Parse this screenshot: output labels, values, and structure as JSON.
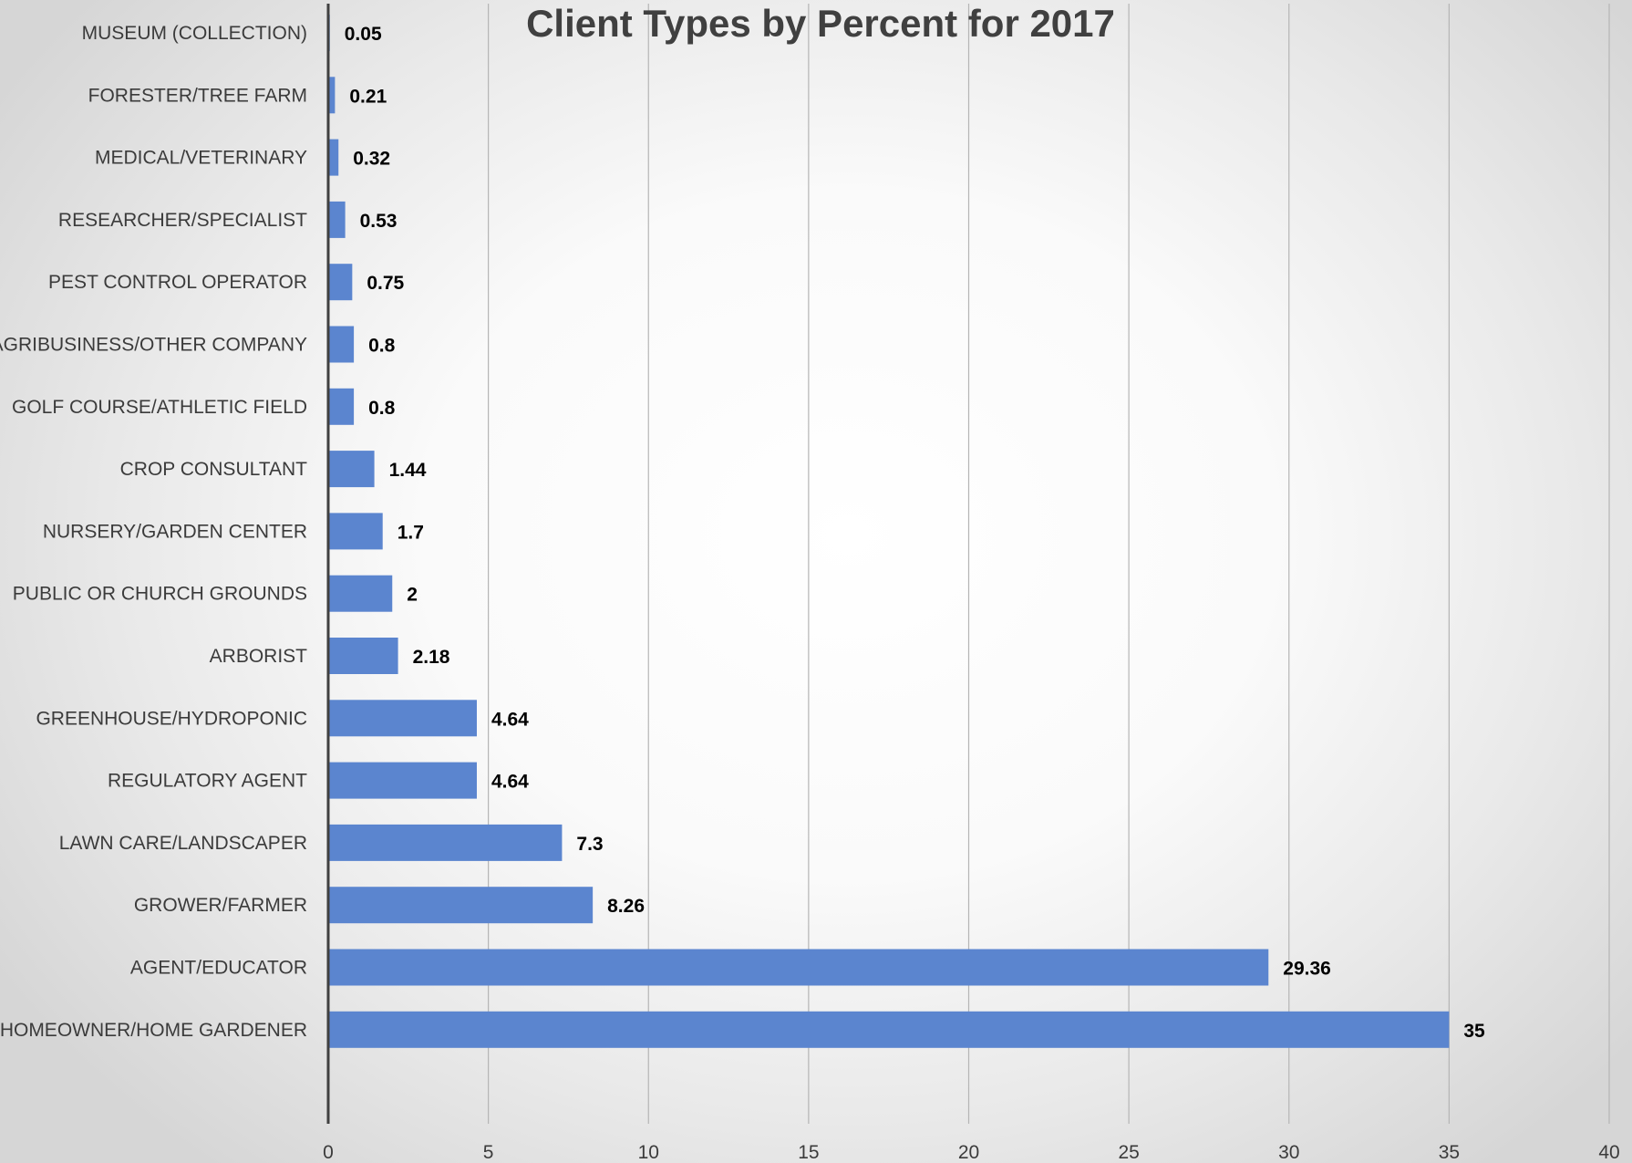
{
  "chart_data": {
    "type": "bar",
    "orientation": "horizontal",
    "title": "Client Types by Percent for 2017",
    "xlabel": "",
    "ylabel": "",
    "categories": [
      "MUSEUM (COLLECTION)",
      "FORESTER/TREE FARM",
      "MEDICAL/VETERINARY",
      "RESEARCHER/SPECIALIST",
      "PEST CONTROL OPERATOR",
      "AGRIBUSINESS/OTHER COMPANY",
      "GOLF COURSE/ATHLETIC FIELD",
      "CROP CONSULTANT",
      "NURSERY/GARDEN CENTER",
      "PUBLIC OR CHURCH GROUNDS",
      "ARBORIST",
      "GREENHOUSE/HYDROPONIC",
      "REGULATORY AGENT",
      "LAWN CARE/LANDSCAPER",
      "GROWER/FARMER",
      "AGENT/EDUCATOR",
      "HOMEOWNER/HOME GARDENER"
    ],
    "values": [
      0.05,
      0.21,
      0.32,
      0.53,
      0.75,
      0.8,
      0.8,
      1.44,
      1.7,
      2,
      2.18,
      4.64,
      4.64,
      7.3,
      8.26,
      29.36,
      35
    ],
    "data_labels": [
      "0.05",
      "0.21",
      "0.32",
      "0.53",
      "0.75",
      "0.8",
      "0.8",
      "1.44",
      "1.7",
      "2",
      "2.18",
      "4.64",
      "4.64",
      "7.3",
      "8.26",
      "29.36",
      "35"
    ],
    "xlim": [
      0,
      40
    ],
    "x_ticks": [
      "0",
      "5",
      "10",
      "15",
      "20",
      "25",
      "30",
      "35",
      "40"
    ],
    "grid": "vertical",
    "legend": "none",
    "colors": {
      "bar": "#5b85cf",
      "gridline": "#b5b5b5",
      "axis": "#404040"
    }
  }
}
